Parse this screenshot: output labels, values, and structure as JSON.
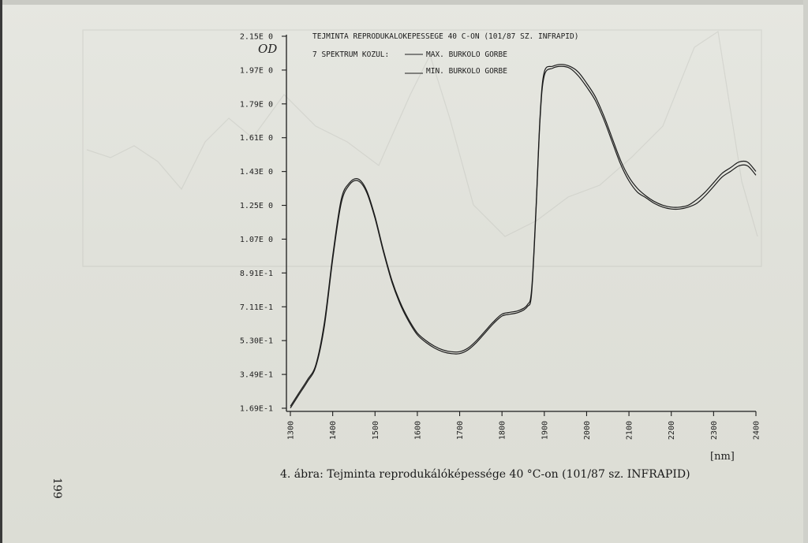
{
  "page_number": "199",
  "caption": "4. ábra: Tejminta reprodukálóképessége 40 °C-on (101/87 sz. INFRAPID)",
  "chart_data": {
    "type": "line",
    "title": "TEJMINTA REPRODUKALOKEPESSEGE 40 C-ON (101/87 SZ. INFRAPID)",
    "subtitle": "7 SPEKTRUM KOZUL:",
    "ylabel": "OD",
    "xlabel": "[nm]",
    "yticks": [
      "2.15E 0",
      "1.97E 0",
      "1.79E 0",
      "1.61E 0",
      "1.43E 0",
      "1.25E 0",
      "1.07E 0",
      "8.91E-1",
      "7.11E-1",
      "5.30E-1",
      "3.49E-1",
      "1.69E-1"
    ],
    "xticks": [
      "1300",
      "1400",
      "1500",
      "1600",
      "1700",
      "1800",
      "1900",
      "2000",
      "2100",
      "2200",
      "2300",
      "2400"
    ],
    "xlim": [
      1300,
      2400
    ],
    "ylim": [
      0.169,
      2.15
    ],
    "legend": [
      "MAX. BURKOLO GORBE",
      "MIN. BURKOLO GORBE"
    ],
    "series": [
      {
        "name": "MAX. BURKOLO GORBE",
        "x": [
          1300,
          1320,
          1340,
          1360,
          1380,
          1400,
          1420,
          1440,
          1460,
          1480,
          1500,
          1520,
          1540,
          1560,
          1580,
          1600,
          1620,
          1640,
          1660,
          1680,
          1700,
          1720,
          1740,
          1760,
          1780,
          1800,
          1820,
          1840,
          1860,
          1870,
          1880,
          1890,
          1900,
          1920,
          1940,
          1960,
          1980,
          2000,
          2020,
          2040,
          2060,
          2080,
          2100,
          2120,
          2140,
          2160,
          2180,
          2200,
          2220,
          2240,
          2260,
          2280,
          2300,
          2320,
          2340,
          2360,
          2380,
          2400
        ],
        "values": [
          0.18,
          0.25,
          0.32,
          0.4,
          0.62,
          0.98,
          1.28,
          1.37,
          1.39,
          1.33,
          1.19,
          1.01,
          0.85,
          0.73,
          0.64,
          0.57,
          0.53,
          0.5,
          0.48,
          0.47,
          0.47,
          0.49,
          0.53,
          0.58,
          0.63,
          0.67,
          0.68,
          0.69,
          0.72,
          0.8,
          1.22,
          1.73,
          1.96,
          1.99,
          2.0,
          1.99,
          1.96,
          1.9,
          1.83,
          1.73,
          1.61,
          1.49,
          1.4,
          1.34,
          1.3,
          1.27,
          1.25,
          1.24,
          1.24,
          1.25,
          1.28,
          1.32,
          1.37,
          1.42,
          1.45,
          1.48,
          1.48,
          1.43
        ]
      },
      {
        "name": "MIN. BURKOLO GORBE",
        "x": [
          1300,
          1320,
          1340,
          1360,
          1380,
          1400,
          1420,
          1440,
          1460,
          1480,
          1500,
          1520,
          1540,
          1560,
          1580,
          1600,
          1620,
          1640,
          1660,
          1680,
          1700,
          1720,
          1740,
          1760,
          1780,
          1800,
          1820,
          1840,
          1860,
          1870,
          1880,
          1890,
          1900,
          1920,
          1940,
          1960,
          1980,
          2000,
          2020,
          2040,
          2060,
          2080,
          2100,
          2120,
          2140,
          2160,
          2180,
          2200,
          2220,
          2240,
          2260,
          2280,
          2300,
          2320,
          2340,
          2360,
          2380,
          2400
        ],
        "values": [
          0.17,
          0.24,
          0.31,
          0.39,
          0.6,
          0.96,
          1.26,
          1.36,
          1.38,
          1.32,
          1.18,
          1.0,
          0.84,
          0.72,
          0.63,
          0.56,
          0.52,
          0.49,
          0.47,
          0.46,
          0.46,
          0.48,
          0.52,
          0.57,
          0.62,
          0.66,
          0.67,
          0.68,
          0.71,
          0.78,
          1.2,
          1.71,
          1.94,
          1.98,
          1.99,
          1.98,
          1.94,
          1.88,
          1.81,
          1.71,
          1.59,
          1.47,
          1.38,
          1.32,
          1.29,
          1.26,
          1.24,
          1.23,
          1.23,
          1.24,
          1.26,
          1.3,
          1.35,
          1.4,
          1.43,
          1.46,
          1.46,
          1.41
        ]
      }
    ],
    "grid": false,
    "legend_position": "top"
  },
  "colors": {
    "line": "#1b1b1b",
    "paper": "#e2e3dc",
    "ghost": "#b9bab4"
  }
}
